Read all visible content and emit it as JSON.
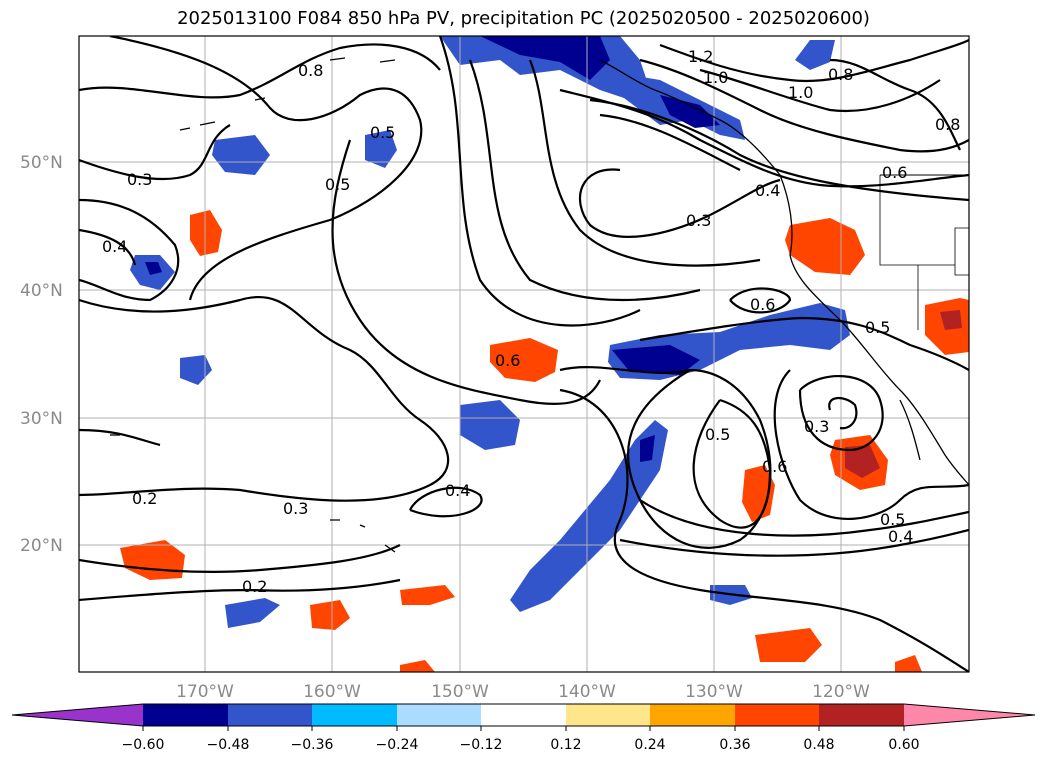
{
  "title": "2025013100 F084 850 hPa PV, precipitation PC (2025020500 - 2025020600)",
  "map": {
    "lat_labels": [
      "50°N",
      "40°N",
      "30°N",
      "20°N"
    ],
    "lon_labels": [
      "170°W",
      "160°W",
      "150°W",
      "140°W",
      "130°W",
      "120°W"
    ],
    "contour_labels": [
      "0.8",
      "0.5",
      "0.5",
      "0.3",
      "0.4",
      "1.2",
      "1.0",
      "1.0",
      "0.8",
      "0.8",
      "0.6",
      "0.4",
      "0.3",
      "0.6",
      "0.5",
      "0.6",
      "0.5",
      "0.3",
      "0.6",
      "0.4",
      "0.2",
      "0.3",
      "0.2",
      "0.5",
      "0.4"
    ],
    "colors": {
      "coast": "#000000",
      "grid": "#b0b0b0",
      "contour": "#000000"
    }
  },
  "colorbar": {
    "ticks": [
      "−0.60",
      "−0.48",
      "−0.36",
      "−0.24",
      "−0.12",
      "0.12",
      "0.24",
      "0.36",
      "0.48",
      "0.60"
    ],
    "colors": [
      "#9933cc",
      "#000090",
      "#3355cc",
      "#00bbff",
      "#aaddff",
      "#ffffff",
      "#ffe68a",
      "#ffa500",
      "#ff4500",
      "#b22222",
      "#ff88aa"
    ]
  }
}
